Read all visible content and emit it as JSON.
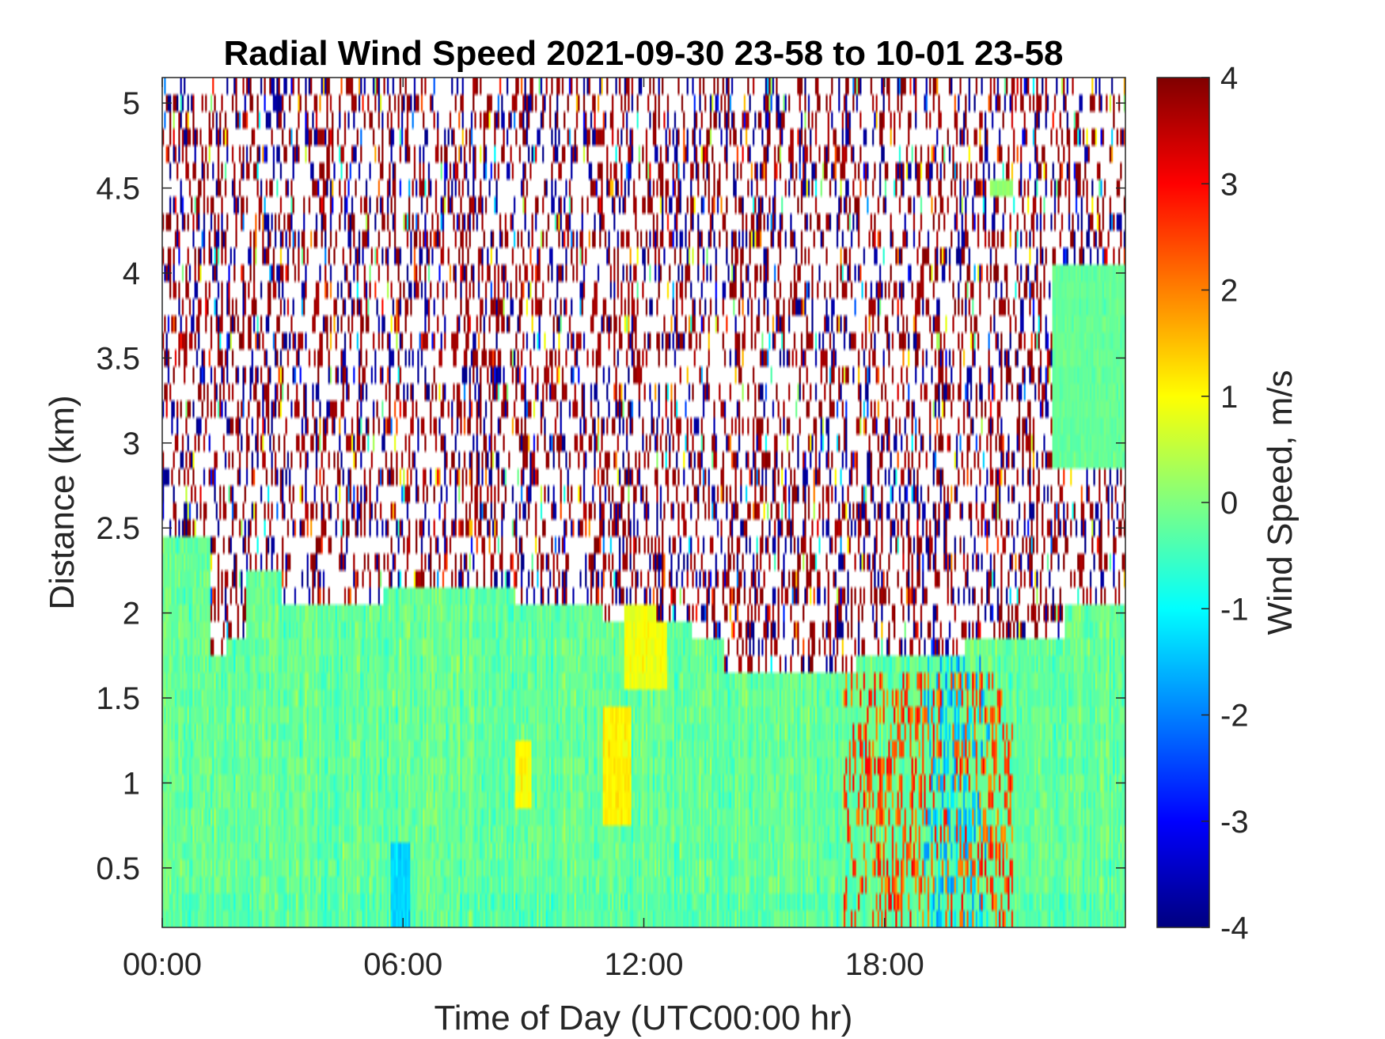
{
  "chart_data": {
    "type": "heatmap",
    "title": "Radial Wind Speed 2021-09-30 23-58 to 10-01 23-58",
    "xlabel": "Time of Day (UTC00:00 hr)",
    "ylabel": "Distance (km)",
    "colorbar_label": "Wind Speed, m/s",
    "colormap": "jet",
    "missing_color": "#ffffff",
    "x_unit": "hour of day (UTC)",
    "xlim": [
      0,
      24
    ],
    "ylim": [
      0.15,
      5.15
    ],
    "clim": [
      -4,
      4
    ],
    "x_ticks": [
      0,
      6,
      12,
      18
    ],
    "x_tick_labels": [
      "00:00",
      "06:00",
      "12:00",
      "18:00"
    ],
    "y_ticks": [
      0.5,
      1,
      1.5,
      2,
      2.5,
      3,
      3.5,
      4,
      4.5,
      5
    ],
    "y_tick_labels": [
      "0.5",
      "1",
      "1.5",
      "2",
      "2.5",
      "3",
      "3.5",
      "4",
      "4.5",
      "5"
    ],
    "colorbar_ticks": [
      -4,
      -3,
      -2,
      -1,
      0,
      1,
      2,
      3,
      4
    ],
    "colorbar_tick_labels": [
      "-4",
      "-3",
      "-2",
      "-1",
      "0",
      "1",
      "2",
      "3",
      "4"
    ],
    "range_gate_km": 0.1,
    "valid_data_top_km": [
      {
        "x": 0.0,
        "y": 2.45
      },
      {
        "x": 1.2,
        "y": 1.75
      },
      {
        "x": 1.6,
        "y": 1.85
      },
      {
        "x": 2.1,
        "y": 2.25
      },
      {
        "x": 3.0,
        "y": 2.05
      },
      {
        "x": 5.5,
        "y": 2.15
      },
      {
        "x": 8.8,
        "y": 2.05
      },
      {
        "x": 11.0,
        "y": 1.95
      },
      {
        "x": 11.5,
        "y": 2.05
      },
      {
        "x": 12.3,
        "y": 1.95
      },
      {
        "x": 13.2,
        "y": 1.85
      },
      {
        "x": 14.0,
        "y": 1.65
      },
      {
        "x": 17.3,
        "y": 1.75
      },
      {
        "x": 20.0,
        "y": 1.85
      },
      {
        "x": 22.5,
        "y": 2.05
      },
      {
        "x": 24.0,
        "y": 2.05
      }
    ],
    "features": [
      {
        "label": "weak positive patch",
        "x_range": [
          11.0,
          11.7
        ],
        "y_range": [
          0.8,
          1.4
        ],
        "value": 1.1
      },
      {
        "label": "weak positive patch",
        "x_range": [
          8.8,
          9.2
        ],
        "y_range": [
          0.9,
          1.2
        ],
        "value": 1.0
      },
      {
        "label": "weak positive layer",
        "x_range": [
          11.5,
          12.6
        ],
        "y_range": [
          1.6,
          2.05
        ],
        "value": 0.9
      },
      {
        "label": "strong positive streaks",
        "x_range": [
          17.0,
          21.2
        ],
        "y_range": [
          0.15,
          1.6
        ],
        "value": 2.8
      },
      {
        "label": "negative streaks",
        "x_range": [
          19.0,
          20.6
        ],
        "y_range": [
          0.15,
          1.7
        ],
        "value": -1.8
      },
      {
        "label": "negative region",
        "x_range": [
          5.7,
          6.2
        ],
        "y_range": [
          0.15,
          0.7
        ],
        "value": -1.3
      },
      {
        "label": "upper-level echo",
        "x_range": [
          22.2,
          24.0
        ],
        "y_range": [
          2.9,
          4.1
        ],
        "value": -0.2
      },
      {
        "label": "upper-level echo",
        "x_range": [
          20.6,
          21.2
        ],
        "y_range": [
          4.5,
          4.6
        ],
        "value": 0.1
      }
    ],
    "background_value_below_top": -0.2,
    "noise_above_top": "scattered pixels of extreme positive and negative values"
  }
}
